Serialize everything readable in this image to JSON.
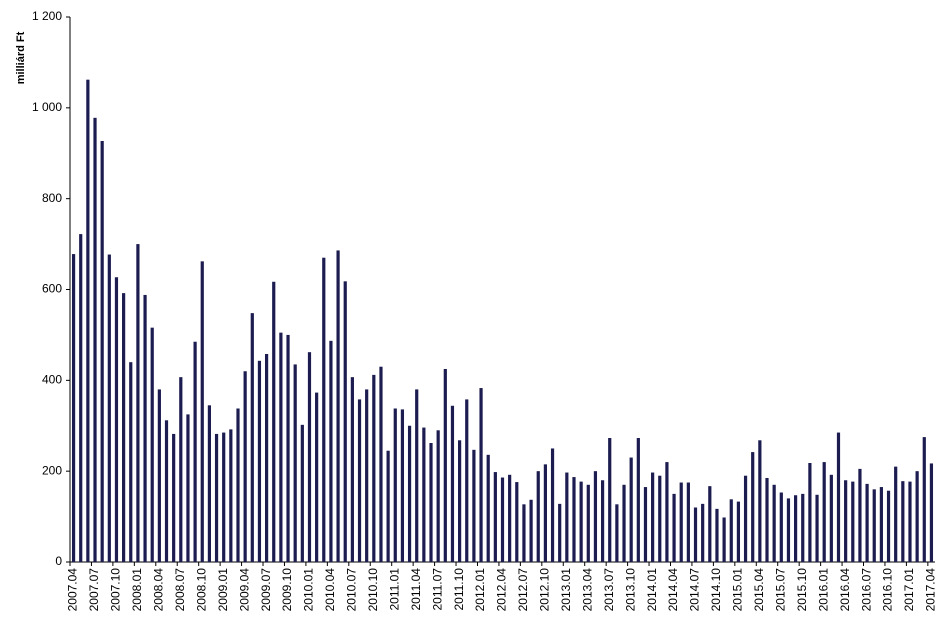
{
  "chart_data": {
    "type": "bar",
    "ylabel": "milliárd Ft",
    "color": "#1c1c50",
    "ylim": [
      0,
      1200
    ],
    "yticks": [
      0,
      200,
      400,
      600,
      800,
      {
        "value": 1000,
        "label": "1 000"
      },
      {
        "value": 1200,
        "label": "1 200"
      }
    ],
    "categories": [
      "2007.04",
      null,
      null,
      "2007.07",
      null,
      null,
      "2007.10",
      null,
      null,
      "2008.01",
      null,
      null,
      "2008.04",
      null,
      null,
      "2008.07",
      null,
      null,
      "2008.10",
      null,
      null,
      "2009.01",
      null,
      null,
      "2009.04",
      null,
      null,
      "2009.07",
      null,
      null,
      "2009.10",
      null,
      null,
      "2010.01",
      null,
      null,
      "2010.04",
      null,
      null,
      "2010.07",
      null,
      null,
      "2010.10",
      null,
      null,
      "2011.01",
      null,
      null,
      "2011.04",
      null,
      null,
      "2011.07",
      null,
      null,
      "2011.10",
      null,
      null,
      "2012.01",
      null,
      null,
      "2012.04",
      null,
      null,
      "2012.07",
      null,
      null,
      "2012.10",
      null,
      null,
      "2013.01",
      null,
      null,
      "2013.04",
      null,
      null,
      "2013.07",
      null,
      null,
      "2013.10",
      null,
      null,
      "2014.01",
      null,
      null,
      "2014.04",
      null,
      null,
      "2014.07",
      null,
      null,
      "2014.10",
      null,
      null,
      "2015.01",
      null,
      null,
      "2015.04",
      null,
      null,
      "2015.07",
      null,
      null,
      "2015.10",
      null,
      null,
      "2016.01",
      null,
      null,
      "2016.04",
      null,
      null,
      "2016.07",
      null,
      null,
      "2016.10",
      null,
      null,
      "2017.01",
      null,
      null,
      "2017.04"
    ],
    "values": [
      678,
      722,
      1062,
      978,
      927,
      677,
      627,
      592,
      440,
      700,
      588,
      516,
      380,
      312,
      282,
      407,
      325,
      485,
      662,
      345,
      282,
      285,
      292,
      338,
      420,
      548,
      443,
      458,
      617,
      505,
      500,
      435,
      302,
      462,
      373,
      670,
      487,
      686,
      618,
      407,
      358,
      380,
      412,
      430,
      245,
      338,
      336,
      300,
      380,
      296,
      262,
      290,
      425,
      344,
      268,
      358,
      247,
      383,
      236,
      198,
      186,
      192,
      176,
      127,
      137,
      200,
      215,
      250,
      128,
      197,
      187,
      177,
      170,
      200,
      180,
      273,
      127,
      170,
      230,
      273,
      165,
      197,
      190,
      220,
      150,
      175,
      175,
      120,
      128,
      167,
      117,
      98,
      138,
      133,
      190,
      242,
      268,
      185,
      170,
      153,
      140,
      147,
      150,
      218,
      148,
      220,
      192,
      285,
      180,
      177,
      205,
      172,
      160,
      165,
      157,
      210,
      178,
      177,
      200,
      275,
      217
    ]
  }
}
